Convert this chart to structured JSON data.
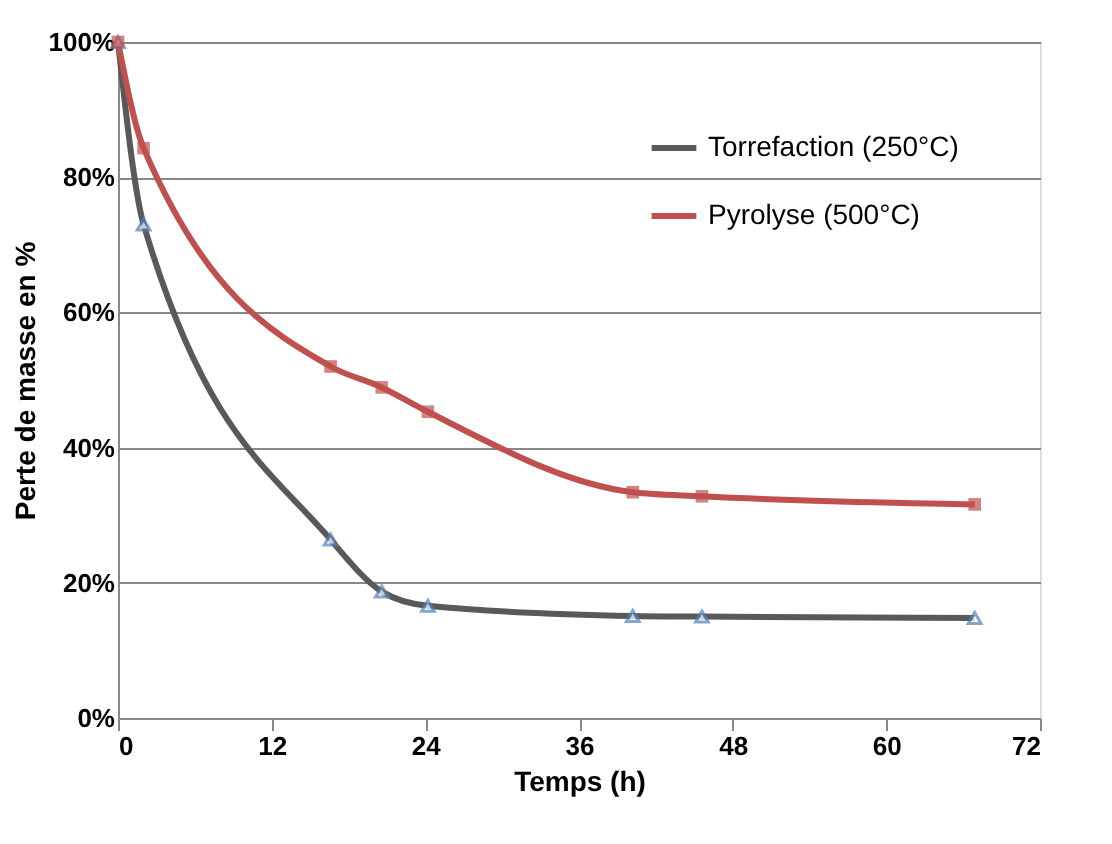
{
  "chart_data": {
    "type": "line",
    "xlabel": "Temps (h)",
    "ylabel": "Perte de masse en %",
    "x": [
      0,
      2,
      16.6,
      20.6,
      24.2,
      40.2,
      45.6,
      66.9
    ],
    "series": [
      {
        "name": "Torrefaction (250°C)",
        "color": "#595959",
        "marker": "triangle",
        "colors": [
          "#4f81bd",
          "#4f81bd",
          "#4f81bd",
          "#4f81bd",
          "#4f81bd",
          "#4f81bd",
          "#4f81bd",
          "#4f81bd"
        ],
        "values": [
          100,
          73,
          26.4,
          18.7,
          16.6,
          15.1,
          15.0,
          14.8
        ]
      },
      {
        "name": "Pyrolyse (500°C)",
        "color": "#c0504d",
        "marker": "square",
        "values": [
          100,
          84.3,
          52,
          48.9,
          45.3,
          33.4,
          32.8,
          31.6
        ]
      }
    ],
    "xlim": [
      0,
      72
    ],
    "xticks": [
      0,
      12,
      24,
      36,
      48,
      60,
      72
    ],
    "ylim": [
      0,
      100
    ],
    "yticks": [
      {
        "value": 0,
        "label": "0%"
      },
      {
        "value": 20,
        "label": "20%"
      },
      {
        "value": 40,
        "label": "40%"
      },
      {
        "value": 60,
        "label": "60%"
      },
      {
        "value": 80,
        "label": "80%"
      },
      {
        "value": 100,
        "label": "100%"
      }
    ],
    "grid": "y",
    "legend": "top right",
    "line_style": "solid"
  }
}
